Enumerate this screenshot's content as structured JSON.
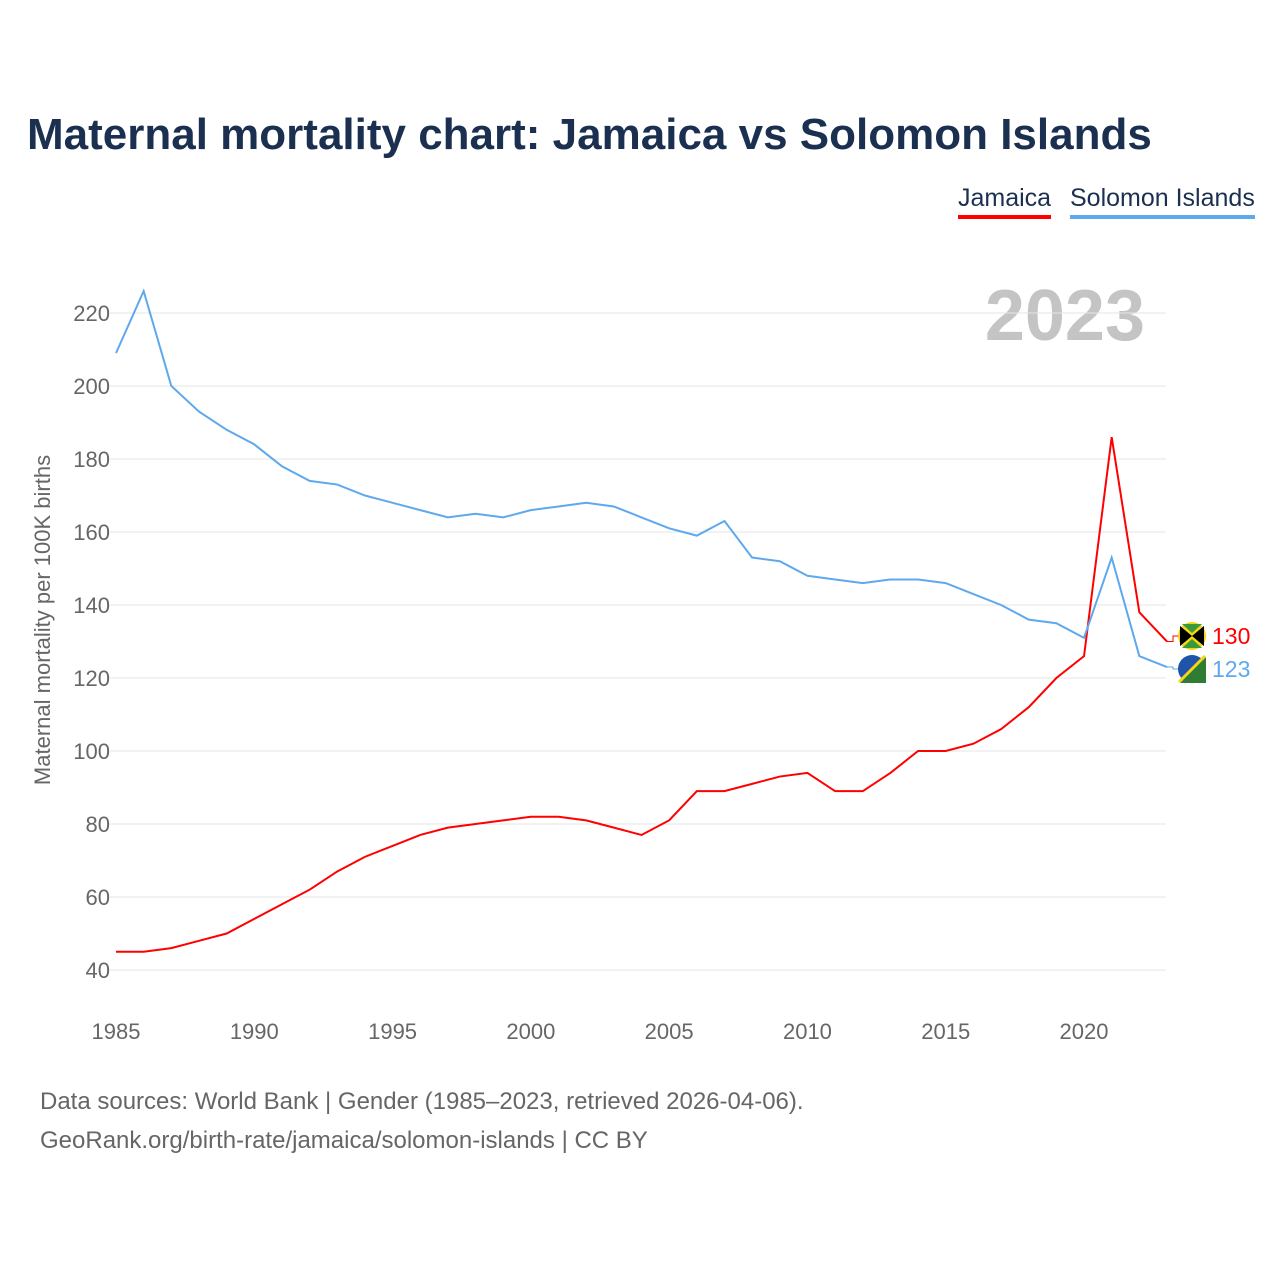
{
  "title": "Maternal mortality chart: Jamaica vs Solomon Islands",
  "legend": [
    "Jamaica",
    "Solomon Islands"
  ],
  "year_label": "2023",
  "sources": [
    "Data sources: World Bank | Gender (1985–2023, retrieved 2026-04-06).",
    "GeoRank.org/birth-rate/jamaica/solomon-islands | CC BY"
  ],
  "colors": {
    "jamaica": "#ff0000",
    "solomon": "#5ea8ee"
  },
  "chart_data": {
    "type": "line",
    "title": "Maternal mortality chart: Jamaica vs Solomon Islands",
    "xlabel": "",
    "ylabel": "Maternal mortality per 100K births",
    "xlim": [
      1985,
      2023
    ],
    "ylim": [
      40,
      220
    ],
    "xticks": [
      1985,
      1990,
      1995,
      2000,
      2005,
      2010,
      2015,
      2020
    ],
    "yticks": [
      40,
      60,
      80,
      100,
      120,
      140,
      160,
      180,
      200,
      220
    ],
    "x": [
      1985,
      1986,
      1987,
      1988,
      1989,
      1990,
      1991,
      1992,
      1993,
      1994,
      1995,
      1996,
      1997,
      1998,
      1999,
      2000,
      2001,
      2002,
      2003,
      2004,
      2005,
      2006,
      2007,
      2008,
      2009,
      2010,
      2011,
      2012,
      2013,
      2014,
      2015,
      2016,
      2017,
      2018,
      2019,
      2020,
      2021,
      2022,
      2023
    ],
    "series": [
      {
        "name": "Jamaica",
        "end_label": "130",
        "values": [
          45,
          45,
          46,
          48,
          50,
          54,
          58,
          62,
          67,
          71,
          74,
          77,
          79,
          80,
          81,
          82,
          82,
          81,
          79,
          77,
          81,
          89,
          89,
          91,
          93,
          94,
          89,
          89,
          94,
          100,
          100,
          102,
          106,
          112,
          120,
          126,
          186,
          138,
          130
        ]
      },
      {
        "name": "Solomon Islands",
        "end_label": "123",
        "values": [
          209,
          226,
          200,
          193,
          188,
          184,
          178,
          174,
          173,
          170,
          168,
          166,
          164,
          165,
          164,
          166,
          167,
          168,
          167,
          164,
          161,
          159,
          163,
          153,
          152,
          148,
          147,
          146,
          147,
          147,
          146,
          143,
          140,
          136,
          135,
          131,
          153,
          126,
          123
        ]
      }
    ],
    "legend_position": "top-right",
    "grid": true
  }
}
